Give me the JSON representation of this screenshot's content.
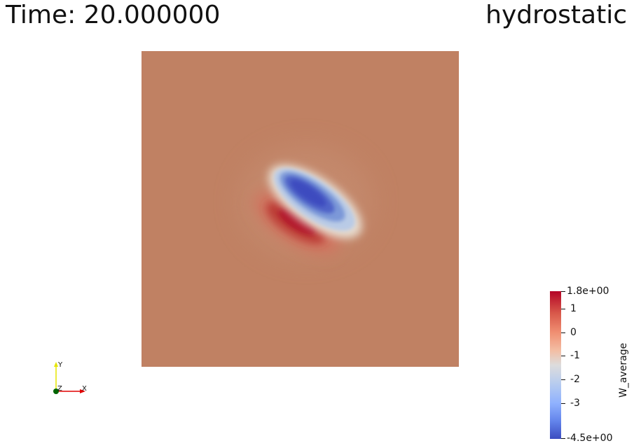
{
  "header": {
    "time_label": "Time: 20.000000",
    "title": "hydrostatic"
  },
  "axes": {
    "x_label": "X",
    "y_label": "Y",
    "z_label": "Z"
  },
  "colorbar": {
    "title": "W_average",
    "max_label": "1.8e+00",
    "min_label": "-4.5e+00",
    "range": [
      -4.5,
      1.8
    ],
    "ticks": [
      {
        "value": 1,
        "label": "1"
      },
      {
        "value": 0,
        "label": "0"
      },
      {
        "value": -1,
        "label": "-1"
      },
      {
        "value": -2,
        "label": "-2"
      },
      {
        "value": -3,
        "label": "-3"
      }
    ],
    "colormap": "Cool to Warm"
  },
  "colors": {
    "background_field": "#c08163",
    "warm_max": "#b40426",
    "neutral": "#dddddd",
    "cool_min": "#3b4cc0"
  }
}
